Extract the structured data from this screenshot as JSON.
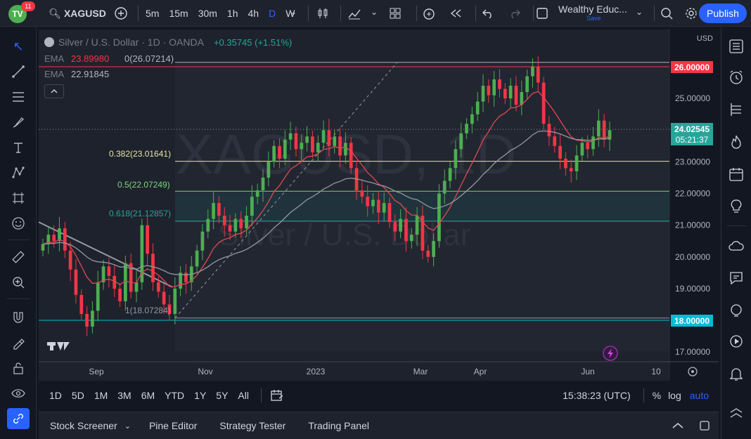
{
  "topbar": {
    "logo_text": "TV",
    "notification_count": "11",
    "symbol": "XAGUSD",
    "timeframes": [
      "5m",
      "15m",
      "30m",
      "1h",
      "4h",
      "D",
      "W"
    ],
    "active_timeframe": "D",
    "layout_name": "Wealthy Educ...",
    "save_label": "Save",
    "publish_label": "Publish"
  },
  "legend": {
    "title": "Silver / U.S. Dollar · 1D · OANDA",
    "change": "+0.35745 (+1.51%)",
    "ema1_label": "EMA",
    "ema1_value": "23.89980",
    "ema1_extra": "0(26.07214)",
    "ema2_label": "EMA",
    "ema2_value": "22.91845"
  },
  "watermark": {
    "symbol": "XAGUSD, 1D",
    "name": "Silver / U.S. Dollar"
  },
  "fib": {
    "l0382": "0.382(23.01641)",
    "l05": "0.5(22.07249)",
    "l0618": "0.618(21.12857)",
    "l1": "1(18.07284)"
  },
  "price_axis": {
    "currency": "USD",
    "labels": [
      "25.00000",
      "23.00000",
      "22.00000",
      "21.00000",
      "20.00000",
      "19.00000",
      "17.00000"
    ],
    "top_marker": "26.00000",
    "current_price": "24.02545",
    "countdown": "05:21:37",
    "bottom_marker": "18.00000"
  },
  "time_axis": {
    "labels": [
      "Sep",
      "Nov",
      "2023",
      "Mar",
      "Apr",
      "Jun",
      "10"
    ]
  },
  "bottombar": {
    "ranges": [
      "1D",
      "5D",
      "1M",
      "3M",
      "6M",
      "YTD",
      "1Y",
      "5Y",
      "All"
    ],
    "time": "15:38:23 (UTC)",
    "percent_label": "%",
    "log_label": "log",
    "auto_label": "auto"
  },
  "panelbar": {
    "tabs": [
      "Stock Screener",
      "Pine Editor",
      "Strategy Tester",
      "Trading Panel"
    ]
  },
  "colors": {
    "up": "#26a69a",
    "up_candle": "#4caf50",
    "down": "#f23645",
    "ema_fast": "#e0484f",
    "ema_slow": "#9598a1",
    "fib_0382": "#e6e6a0",
    "fib_05": "#7bd67b",
    "fib_0618": "#26a69a",
    "accent": "#2962ff"
  },
  "chart_data": {
    "type": "candlestick",
    "symbol": "XAGUSD",
    "interval": "1D",
    "ylim": [
      16.5,
      26.5
    ],
    "closes": [
      20.4,
      20.7,
      20.5,
      20.9,
      20.2,
      19.6,
      18.8,
      18.2,
      17.8,
      18.3,
      19.2,
      19.7,
      19.4,
      19.0,
      18.6,
      19.8,
      18.9,
      19.2,
      21.0,
      20.1,
      19.2,
      18.9,
      18.5,
      18.2,
      19.0,
      19.5,
      19.2,
      19.7,
      20.2,
      20.8,
      21.2,
      21.7,
      21.3,
      21.0,
      20.8,
      21.2,
      20.9,
      21.3,
      21.9,
      22.1,
      22.5,
      23.0,
      23.5,
      23.1,
      23.7,
      23.9,
      23.4,
      23.6,
      23.8,
      23.3,
      23.6,
      24.0,
      23.5,
      23.8,
      23.2,
      23.6,
      22.8,
      22.1,
      21.9,
      21.6,
      21.8,
      21.4,
      21.7,
      21.1,
      20.8,
      21.2,
      20.5,
      20.7,
      21.3,
      20.2,
      20.0,
      20.5,
      22.0,
      22.4,
      22.8,
      23.4,
      23.9,
      24.2,
      24.5,
      24.9,
      25.4,
      25.1,
      25.6,
      25.3,
      25.0,
      25.4,
      24.8,
      25.2,
      25.7,
      26.0,
      25.5,
      24.2,
      23.8,
      23.5,
      23.1,
      22.8,
      22.7,
      23.2,
      23.6,
      23.4,
      23.8,
      24.3,
      23.7,
      24.0
    ],
    "ema_fast_last": 23.8998,
    "ema_slow_last": 22.91845,
    "fib_levels": {
      "0": 26.07214,
      "0.382": 23.01641,
      "0.5": 22.07249,
      "0.618": 21.12857,
      "1": 18.07284
    },
    "horizontal_lines": [
      26.0,
      18.0
    ],
    "current_price": 24.02545
  }
}
